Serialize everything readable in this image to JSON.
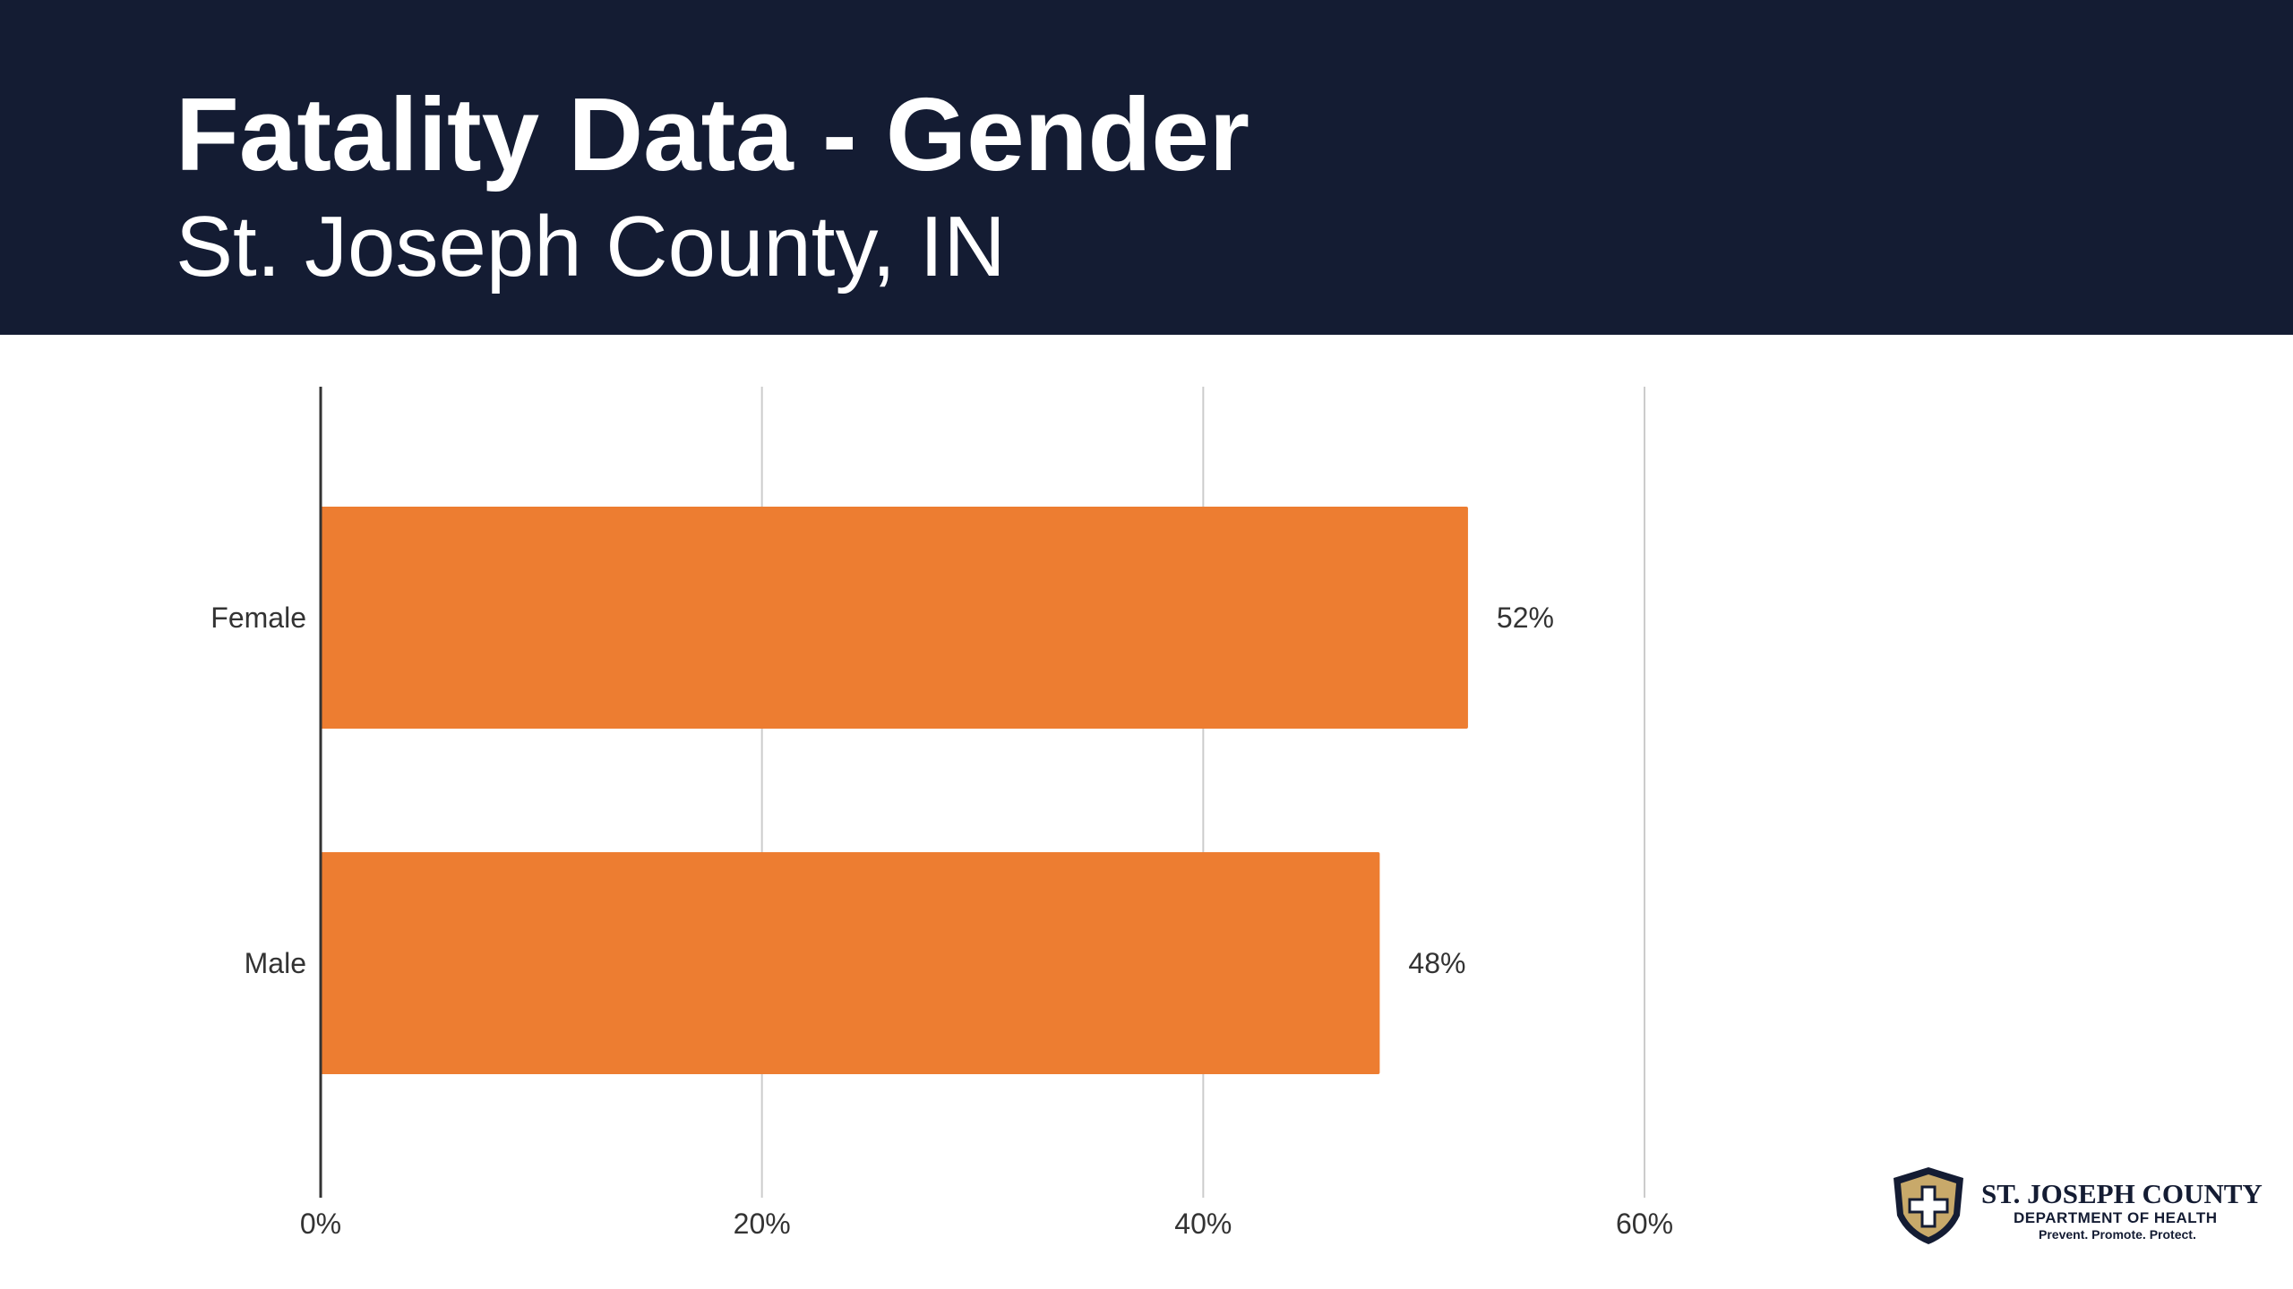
{
  "header": {
    "title": "Fatality Data - Gender",
    "subtitle": "St. Joseph County, IN"
  },
  "logo": {
    "name": "ST. JOSEPH COUNTY",
    "department": "DEPARTMENT OF HEALTH",
    "tagline": "Prevent. Promote. Protect.",
    "icon": "shield-cross-icon"
  },
  "colors": {
    "header_bg": "#141c33",
    "bar": "#ed7d31",
    "grid": "#cccccc",
    "axis": "#333333",
    "logo_gold": "#c8a96a"
  },
  "chart_data": {
    "type": "bar",
    "orientation": "horizontal",
    "categories": [
      "Female",
      "Male"
    ],
    "values": [
      52,
      48
    ],
    "value_labels": [
      "52%",
      "48%"
    ],
    "x_ticks": [
      0,
      20,
      40,
      60
    ],
    "x_tick_labels": [
      "0%",
      "20%",
      "40%",
      "60%"
    ],
    "xlim": [
      0,
      60
    ],
    "grid": true,
    "legend": "none"
  }
}
